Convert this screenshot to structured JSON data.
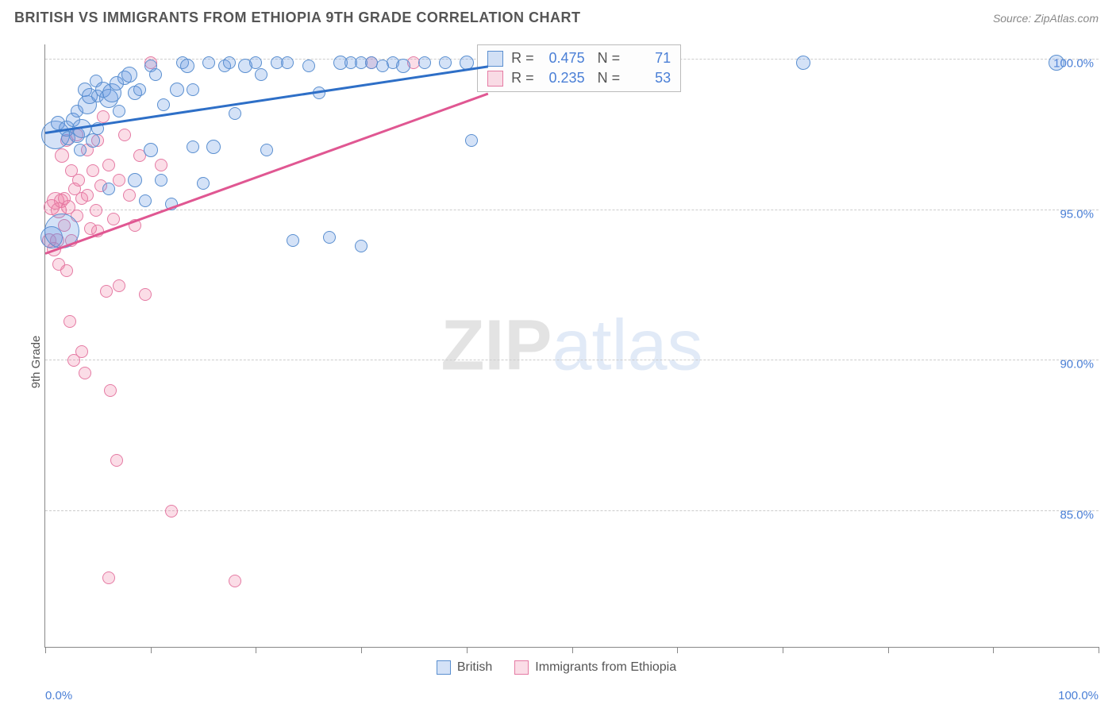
{
  "header": {
    "title": "BRITISH VS IMMIGRANTS FROM ETHIOPIA 9TH GRADE CORRELATION CHART",
    "source": "Source: ZipAtlas.com"
  },
  "ylabel": "9th Grade",
  "watermark": {
    "bold": "ZIP",
    "light": "atlas"
  },
  "chart": {
    "type": "scatter",
    "xlim": [
      0,
      100
    ],
    "ylim": [
      80.5,
      100.5
    ],
    "x_ticks": [
      0,
      10,
      20,
      30,
      40,
      50,
      60,
      70,
      80,
      90,
      100
    ],
    "x_tick_labels": {
      "0": "0.0%",
      "100": "100.0%"
    },
    "y_ticks": [
      85.0,
      90.0,
      95.0,
      100.0
    ],
    "y_tick_labels": [
      "85.0%",
      "90.0%",
      "95.0%",
      "100.0%"
    ],
    "grid_color": "#cccccc",
    "axis_color": "#888888",
    "background": "#ffffff"
  },
  "series": {
    "a": {
      "label": "British",
      "fill": "rgba(100,150,225,0.28)",
      "stroke": "#5a8fd0",
      "trend_color": "#2e6fc7",
      "R": "0.475",
      "N": "71",
      "trend": {
        "x1": 0,
        "y1": 97.6,
        "x2": 42,
        "y2": 99.8
      },
      "points": [
        {
          "x": 0.6,
          "y": 94.1,
          "r": 14
        },
        {
          "x": 1.0,
          "y": 97.5,
          "r": 18
        },
        {
          "x": 1.2,
          "y": 97.9,
          "r": 9
        },
        {
          "x": 1.6,
          "y": 94.3,
          "r": 22
        },
        {
          "x": 2.0,
          "y": 97.7,
          "r": 10
        },
        {
          "x": 2.2,
          "y": 97.4,
          "r": 9
        },
        {
          "x": 2.6,
          "y": 98.0,
          "r": 9
        },
        {
          "x": 3.0,
          "y": 97.5,
          "r": 10
        },
        {
          "x": 3.0,
          "y": 98.3,
          "r": 8
        },
        {
          "x": 3.3,
          "y": 97.0,
          "r": 8
        },
        {
          "x": 3.5,
          "y": 97.7,
          "r": 12
        },
        {
          "x": 3.8,
          "y": 99.0,
          "r": 9
        },
        {
          "x": 4.0,
          "y": 98.5,
          "r": 12
        },
        {
          "x": 4.2,
          "y": 98.8,
          "r": 10
        },
        {
          "x": 4.5,
          "y": 97.3,
          "r": 9
        },
        {
          "x": 4.8,
          "y": 99.3,
          "r": 8
        },
        {
          "x": 5.0,
          "y": 98.8,
          "r": 8
        },
        {
          "x": 5.0,
          "y": 97.7,
          "r": 8
        },
        {
          "x": 5.5,
          "y": 99.0,
          "r": 10
        },
        {
          "x": 6.0,
          "y": 98.7,
          "r": 12
        },
        {
          "x": 6.0,
          "y": 95.7,
          "r": 8
        },
        {
          "x": 6.3,
          "y": 98.9,
          "r": 12
        },
        {
          "x": 6.8,
          "y": 99.2,
          "r": 9
        },
        {
          "x": 7.0,
          "y": 98.3,
          "r": 8
        },
        {
          "x": 7.5,
          "y": 99.4,
          "r": 9
        },
        {
          "x": 8.0,
          "y": 99.5,
          "r": 10
        },
        {
          "x": 8.5,
          "y": 98.9,
          "r": 9
        },
        {
          "x": 8.5,
          "y": 96.0,
          "r": 9
        },
        {
          "x": 9.0,
          "y": 99.0,
          "r": 8
        },
        {
          "x": 9.5,
          "y": 95.3,
          "r": 8
        },
        {
          "x": 10.0,
          "y": 99.8,
          "r": 8
        },
        {
          "x": 10.0,
          "y": 97.0,
          "r": 9
        },
        {
          "x": 10.5,
          "y": 99.5,
          "r": 8
        },
        {
          "x": 11.0,
          "y": 96.0,
          "r": 8
        },
        {
          "x": 11.2,
          "y": 98.5,
          "r": 8
        },
        {
          "x": 12.0,
          "y": 95.2,
          "r": 8
        },
        {
          "x": 12.5,
          "y": 99.0,
          "r": 9
        },
        {
          "x": 13.0,
          "y": 99.9,
          "r": 8
        },
        {
          "x": 13.5,
          "y": 99.8,
          "r": 9
        },
        {
          "x": 14.0,
          "y": 99.0,
          "r": 8
        },
        {
          "x": 14.0,
          "y": 97.1,
          "r": 8
        },
        {
          "x": 15.0,
          "y": 95.9,
          "r": 8
        },
        {
          "x": 15.5,
          "y": 99.9,
          "r": 8
        },
        {
          "x": 16.0,
          "y": 97.1,
          "r": 9
        },
        {
          "x": 17.0,
          "y": 99.8,
          "r": 8
        },
        {
          "x": 17.5,
          "y": 99.9,
          "r": 8
        },
        {
          "x": 18.0,
          "y": 98.2,
          "r": 8
        },
        {
          "x": 19.0,
          "y": 99.8,
          "r": 9
        },
        {
          "x": 20.0,
          "y": 99.9,
          "r": 8
        },
        {
          "x": 20.5,
          "y": 99.5,
          "r": 8
        },
        {
          "x": 21.0,
          "y": 97.0,
          "r": 8
        },
        {
          "x": 22.0,
          "y": 99.9,
          "r": 8
        },
        {
          "x": 23.0,
          "y": 99.9,
          "r": 8
        },
        {
          "x": 23.5,
          "y": 94.0,
          "r": 8
        },
        {
          "x": 25.0,
          "y": 99.8,
          "r": 8
        },
        {
          "x": 26.0,
          "y": 98.9,
          "r": 8
        },
        {
          "x": 27.0,
          "y": 94.1,
          "r": 8
        },
        {
          "x": 28.0,
          "y": 99.9,
          "r": 9
        },
        {
          "x": 29.0,
          "y": 99.9,
          "r": 8
        },
        {
          "x": 30.0,
          "y": 99.9,
          "r": 8
        },
        {
          "x": 30.0,
          "y": 93.8,
          "r": 8
        },
        {
          "x": 31.0,
          "y": 99.9,
          "r": 8
        },
        {
          "x": 32.0,
          "y": 99.8,
          "r": 8
        },
        {
          "x": 33.0,
          "y": 99.9,
          "r": 8
        },
        {
          "x": 34.0,
          "y": 99.8,
          "r": 9
        },
        {
          "x": 36.0,
          "y": 99.9,
          "r": 8
        },
        {
          "x": 38.0,
          "y": 99.9,
          "r": 8
        },
        {
          "x": 40.0,
          "y": 99.9,
          "r": 9
        },
        {
          "x": 40.5,
          "y": 97.3,
          "r": 8
        },
        {
          "x": 72.0,
          "y": 99.9,
          "r": 9
        },
        {
          "x": 96.0,
          "y": 99.9,
          "r": 10
        }
      ]
    },
    "b": {
      "label": "Immigants from Ethiopia",
      "label_full": "Immigrants from Ethiopia",
      "fill": "rgba(240,120,160,0.25)",
      "stroke": "#e57ba4",
      "trend_color": "#e05792",
      "R": "0.235",
      "N": "53",
      "trend": {
        "x1": 0,
        "y1": 93.6,
        "x2": 42,
        "y2": 98.9
      },
      "points": [
        {
          "x": 0.4,
          "y": 94.0,
          "r": 9
        },
        {
          "x": 0.6,
          "y": 95.1,
          "r": 10
        },
        {
          "x": 0.8,
          "y": 93.7,
          "r": 9
        },
        {
          "x": 1.0,
          "y": 95.3,
          "r": 11
        },
        {
          "x": 1.1,
          "y": 94.0,
          "r": 9
        },
        {
          "x": 1.3,
          "y": 95.0,
          "r": 10
        },
        {
          "x": 1.3,
          "y": 93.2,
          "r": 8
        },
        {
          "x": 1.5,
          "y": 95.3,
          "r": 9
        },
        {
          "x": 1.6,
          "y": 96.8,
          "r": 9
        },
        {
          "x": 1.8,
          "y": 94.5,
          "r": 8
        },
        {
          "x": 1.8,
          "y": 95.4,
          "r": 8
        },
        {
          "x": 2.0,
          "y": 97.3,
          "r": 8
        },
        {
          "x": 2.0,
          "y": 93.0,
          "r": 8
        },
        {
          "x": 2.2,
          "y": 95.1,
          "r": 9
        },
        {
          "x": 2.3,
          "y": 91.3,
          "r": 8
        },
        {
          "x": 2.5,
          "y": 96.3,
          "r": 8
        },
        {
          "x": 2.5,
          "y": 94.0,
          "r": 8
        },
        {
          "x": 2.7,
          "y": 90.0,
          "r": 8
        },
        {
          "x": 2.8,
          "y": 95.7,
          "r": 8
        },
        {
          "x": 3.0,
          "y": 97.5,
          "r": 8
        },
        {
          "x": 3.0,
          "y": 94.8,
          "r": 8
        },
        {
          "x": 3.2,
          "y": 96.0,
          "r": 8
        },
        {
          "x": 3.5,
          "y": 90.3,
          "r": 8
        },
        {
          "x": 3.5,
          "y": 95.4,
          "r": 8
        },
        {
          "x": 3.8,
          "y": 89.6,
          "r": 8
        },
        {
          "x": 4.0,
          "y": 97.0,
          "r": 8
        },
        {
          "x": 4.0,
          "y": 95.5,
          "r": 8
        },
        {
          "x": 4.3,
          "y": 94.4,
          "r": 8
        },
        {
          "x": 4.5,
          "y": 96.3,
          "r": 8
        },
        {
          "x": 4.8,
          "y": 95.0,
          "r": 8
        },
        {
          "x": 5.0,
          "y": 97.3,
          "r": 8
        },
        {
          "x": 5.0,
          "y": 94.3,
          "r": 8
        },
        {
          "x": 5.3,
          "y": 95.8,
          "r": 8
        },
        {
          "x": 5.5,
          "y": 98.1,
          "r": 8
        },
        {
          "x": 5.8,
          "y": 92.3,
          "r": 8
        },
        {
          "x": 6.0,
          "y": 96.5,
          "r": 8
        },
        {
          "x": 6.2,
          "y": 89.0,
          "r": 8
        },
        {
          "x": 6.5,
          "y": 94.7,
          "r": 8
        },
        {
          "x": 6.8,
          "y": 86.7,
          "r": 8
        },
        {
          "x": 7.0,
          "y": 96.0,
          "r": 8
        },
        {
          "x": 7.0,
          "y": 92.5,
          "r": 8
        },
        {
          "x": 7.5,
          "y": 97.5,
          "r": 8
        },
        {
          "x": 8.0,
          "y": 95.5,
          "r": 8
        },
        {
          "x": 8.5,
          "y": 94.5,
          "r": 8
        },
        {
          "x": 9.0,
          "y": 96.8,
          "r": 8
        },
        {
          "x": 9.5,
          "y": 92.2,
          "r": 8
        },
        {
          "x": 10.0,
          "y": 99.9,
          "r": 8
        },
        {
          "x": 11.0,
          "y": 96.5,
          "r": 8
        },
        {
          "x": 12.0,
          "y": 85.0,
          "r": 8
        },
        {
          "x": 6.0,
          "y": 82.8,
          "r": 8
        },
        {
          "x": 18.0,
          "y": 82.7,
          "r": 8
        },
        {
          "x": 31.0,
          "y": 99.9,
          "r": 8
        },
        {
          "x": 35.0,
          "y": 99.9,
          "r": 8
        }
      ]
    }
  },
  "legend": [
    {
      "key": "a",
      "text": "British"
    },
    {
      "key": "b",
      "text": "Immigrants from Ethiopia"
    }
  ],
  "stats_box": {
    "left_pct": 41,
    "top_pct": 0
  }
}
